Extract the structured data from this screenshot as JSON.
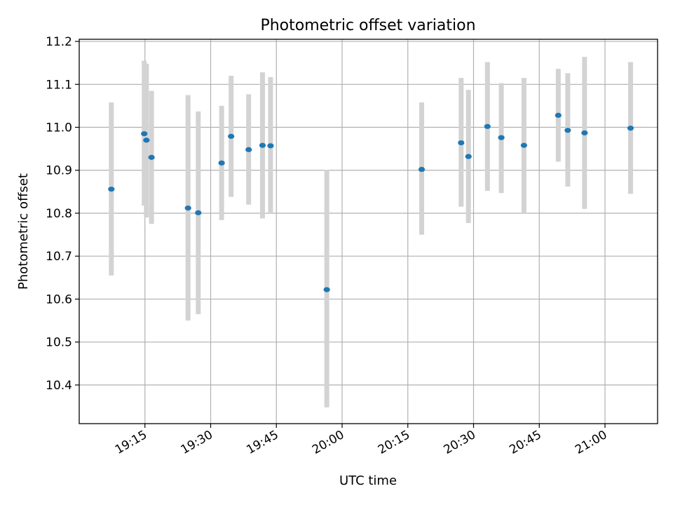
{
  "chart_data": {
    "type": "scatter",
    "title": "Photometric offset variation",
    "xlabel": "UTC time",
    "ylabel": "Photometric offset",
    "x_ticks": [
      "19:15",
      "19:30",
      "19:45",
      "20:00",
      "20:15",
      "20:30",
      "20:45",
      "21:00"
    ],
    "xlim": [
      "19:00",
      "21:12"
    ],
    "ylim": [
      10.31,
      11.205
    ],
    "y_ticks": [
      "10.4",
      "10.5",
      "10.6",
      "10.7",
      "10.8",
      "10.9",
      "11.0",
      "11.1",
      "11.2"
    ],
    "grid": true,
    "colors": {
      "marker": "#1f77b4",
      "error_bar": "#d3d3d3",
      "grid": "#b0b0b0"
    },
    "points": [
      {
        "time": "19:07:20",
        "value": 10.856,
        "low": 10.655,
        "high": 11.058
      },
      {
        "time": "19:14:50",
        "value": 10.985,
        "low": 10.818,
        "high": 11.155
      },
      {
        "time": "19:15:20",
        "value": 10.97,
        "low": 10.79,
        "high": 11.148
      },
      {
        "time": "19:16:30",
        "value": 10.93,
        "low": 10.775,
        "high": 11.085
      },
      {
        "time": "19:24:50",
        "value": 10.812,
        "low": 10.55,
        "high": 11.075
      },
      {
        "time": "19:27:10",
        "value": 10.801,
        "low": 10.565,
        "high": 11.037
      },
      {
        "time": "19:32:30",
        "value": 10.917,
        "low": 10.784,
        "high": 11.05
      },
      {
        "time": "19:34:40",
        "value": 10.979,
        "low": 10.838,
        "high": 11.12
      },
      {
        "time": "19:38:40",
        "value": 10.948,
        "low": 10.82,
        "high": 11.077
      },
      {
        "time": "19:41:50",
        "value": 10.958,
        "low": 10.788,
        "high": 11.128
      },
      {
        "time": "19:43:40",
        "value": 10.957,
        "low": 10.798,
        "high": 11.117
      },
      {
        "time": "19:56:30",
        "value": 10.622,
        "low": 10.348,
        "high": 10.901
      },
      {
        "time": "20:18:10",
        "value": 10.902,
        "low": 10.75,
        "high": 11.058
      },
      {
        "time": "20:27:10",
        "value": 10.964,
        "low": 10.815,
        "high": 11.115
      },
      {
        "time": "20:28:50",
        "value": 10.932,
        "low": 10.777,
        "high": 11.087
      },
      {
        "time": "20:33:10",
        "value": 11.002,
        "low": 10.852,
        "high": 11.152
      },
      {
        "time": "20:36:20",
        "value": 10.976,
        "low": 10.847,
        "high": 11.103
      },
      {
        "time": "20:41:30",
        "value": 10.958,
        "low": 10.8,
        "high": 11.115
      },
      {
        "time": "20:49:20",
        "value": 11.028,
        "low": 10.92,
        "high": 11.136
      },
      {
        "time": "20:51:30",
        "value": 10.993,
        "low": 10.862,
        "high": 11.126
      },
      {
        "time": "20:55:20",
        "value": 10.987,
        "low": 10.81,
        "high": 11.164
      },
      {
        "time": "21:05:50",
        "value": 10.998,
        "low": 10.845,
        "high": 11.152
      }
    ]
  }
}
